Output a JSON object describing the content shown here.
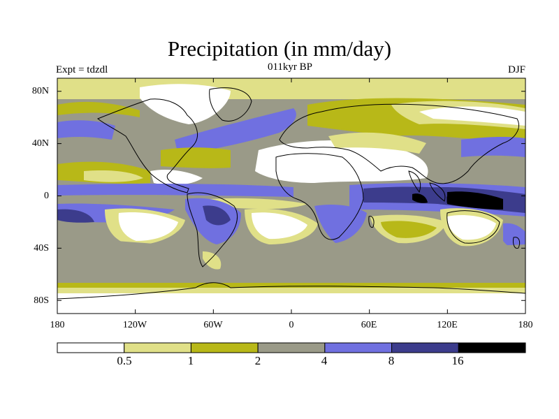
{
  "title": "Precipitation (in mm/day)",
  "left_label": "Expt = tdzdl",
  "center_label": "011kyr BP",
  "right_label": "DJF",
  "lat_ticks": [
    {
      "label": "80N",
      "lat": 80
    },
    {
      "label": "40N",
      "lat": 40
    },
    {
      "label": "0",
      "lat": 0
    },
    {
      "label": "40S",
      "lat": -40
    },
    {
      "label": "80S",
      "lat": -80
    }
  ],
  "lon_ticks": [
    {
      "label": "180",
      "lon": -180
    },
    {
      "label": "120W",
      "lon": -120
    },
    {
      "label": "60W",
      "lon": -60
    },
    {
      "label": "0",
      "lon": 0
    },
    {
      "label": "60E",
      "lon": 60
    },
    {
      "label": "120E",
      "lon": 120
    },
    {
      "label": "180",
      "lon": 180
    }
  ],
  "colorbar": {
    "colors": [
      "#ffffff",
      "#e0e088",
      "#b8b818",
      "#9a9a88",
      "#7070e0",
      "#3c3c8c",
      "#000000"
    ],
    "labels": [
      "0.5",
      "1",
      "2",
      "4",
      "8",
      "16"
    ]
  }
}
